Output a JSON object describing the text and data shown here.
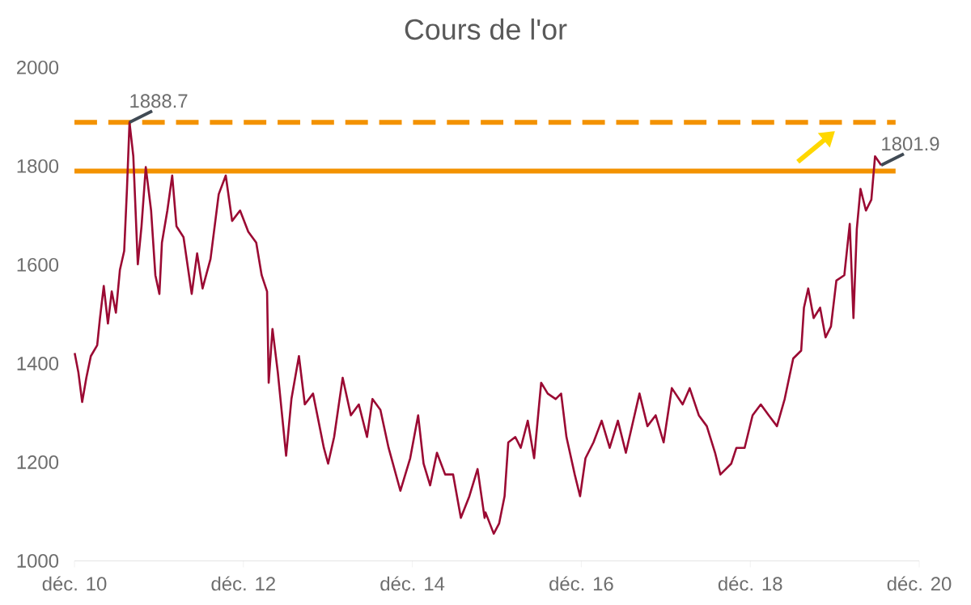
{
  "chart_data": {
    "type": "line",
    "title": "Cours de l'or",
    "color": "#9b0a33",
    "x": [
      "2010-12-02",
      "2010-12-18",
      "2011-01-04",
      "2011-01-22",
      "2011-02-11",
      "2011-03-08",
      "2011-03-20",
      "2011-04-06",
      "2011-04-24",
      "2011-05-10",
      "2011-05-28",
      "2011-06-15",
      "2011-07-03",
      "2011-07-15",
      "2011-07-26",
      "2011-08-12",
      "2011-09-01",
      "2011-09-17",
      "2011-10-05",
      "2011-10-28",
      "2011-11-16",
      "2011-12-03",
      "2011-12-14",
      "2012-01-07",
      "2012-01-28",
      "2012-02-16",
      "2012-03-16",
      "2012-04-21",
      "2012-05-14",
      "2012-06-07",
      "2012-07-11",
      "2012-08-16",
      "2012-09-16",
      "2012-10-13",
      "2012-11-17",
      "2012-12-22",
      "2013-01-26",
      "2013-02-19",
      "2013-03-12",
      "2013-03-19",
      "2013-04-05",
      "2013-04-28",
      "2013-06-03",
      "2013-06-26",
      "2013-07-28",
      "2013-08-23",
      "2013-09-28",
      "2013-11-14",
      "2013-12-02",
      "2013-12-28",
      "2014-02-04",
      "2014-03-09",
      "2014-04-13",
      "2014-05-18",
      "2014-06-11",
      "2014-07-15",
      "2014-08-20",
      "2014-10-10",
      "2014-11-22",
      "2014-12-26",
      "2015-01-19",
      "2015-02-17",
      "2015-03-16",
      "2015-04-21",
      "2015-05-25",
      "2015-06-28",
      "2015-08-04",
      "2015-09-09",
      "2015-10-09",
      "2015-10-13",
      "2015-11-18",
      "2015-12-11",
      "2016-01-04",
      "2016-01-20",
      "2016-02-20",
      "2016-03-13",
      "2016-04-13",
      "2016-05-10",
      "2016-06-10",
      "2016-07-08",
      "2016-08-12",
      "2016-09-05",
      "2016-09-28",
      "2016-11-03",
      "2016-11-26",
      "2016-12-19",
      "2017-01-23",
      "2017-02-28",
      "2017-04-02",
      "2017-05-07",
      "2017-06-11",
      "2017-08-09",
      "2017-09-13",
      "2017-10-18",
      "2017-11-22",
      "2017-12-27",
      "2018-02-13",
      "2018-03-13",
      "2018-04-22",
      "2018-05-26",
      "2018-07-01",
      "2018-07-24",
      "2018-09-10",
      "2018-10-02",
      "2018-11-07",
      "2018-12-11",
      "2019-01-16",
      "2019-02-20",
      "2019-03-25",
      "2019-04-28",
      "2019-06-04",
      "2019-07-08",
      "2019-07-20",
      "2019-08-08",
      "2019-09-01",
      "2019-09-29",
      "2019-10-22",
      "2019-11-15",
      "2019-12-08",
      "2020-01-12",
      "2020-02-05",
      "2020-02-21",
      "2020-03-05",
      "2020-03-21",
      "2020-04-14",
      "2020-05-07",
      "2020-05-23",
      "2020-06-19"
    ],
    "values": [
      1421,
      1382,
      1322,
      1371,
      1415,
      1437,
      1492,
      1557,
      1481,
      1546,
      1503,
      1590,
      1628,
      1754,
      1888.7,
      1820,
      1601,
      1678,
      1798,
      1710,
      1579,
      1541,
      1645,
      1710,
      1781,
      1678,
      1656,
      1541,
      1623,
      1552,
      1612,
      1743,
      1781,
      1689,
      1710,
      1667,
      1645,
      1579,
      1546,
      1361,
      1470,
      1382,
      1213,
      1328,
      1415,
      1317,
      1339,
      1229,
      1197,
      1251,
      1371,
      1295,
      1317,
      1251,
      1328,
      1306,
      1229,
      1142,
      1208,
      1295,
      1197,
      1153,
      1219,
      1175,
      1175,
      1087,
      1131,
      1186,
      1087,
      1098,
      1055,
      1076,
      1131,
      1240,
      1251,
      1229,
      1284,
      1208,
      1361,
      1339,
      1328,
      1339,
      1251,
      1175,
      1131,
      1208,
      1240,
      1284,
      1229,
      1284,
      1219,
      1339,
      1273,
      1295,
      1240,
      1350,
      1317,
      1350,
      1295,
      1273,
      1219,
      1175,
      1197,
      1229,
      1229,
      1295,
      1317,
      1295,
      1273,
      1328,
      1410,
      1426,
      1513,
      1552,
      1492,
      1513,
      1453,
      1475,
      1568,
      1579,
      1683,
      1492,
      1672,
      1754,
      1710,
      1732,
      1820,
      1801.9
    ],
    "xlim": [
      "2010-12-01",
      "2020-12-01"
    ],
    "xticks": [
      {
        "value": "2010-12-01",
        "label": "déc. 10"
      },
      {
        "value": "2012-12-01",
        "label": "déc. 12"
      },
      {
        "value": "2014-12-01",
        "label": "déc. 14"
      },
      {
        "value": "2016-12-01",
        "label": "déc. 16"
      },
      {
        "value": "2018-12-01",
        "label": "déc. 18"
      },
      {
        "value": "2020-12-01",
        "label": "déc. 20"
      }
    ],
    "ylim": [
      1000,
      2000
    ],
    "yticks": [
      1000,
      1200,
      1400,
      1600,
      1800,
      2000
    ],
    "ref_lines": [
      {
        "axis": "y",
        "value": 1888.7,
        "color": "#f39200",
        "line_style": "dashed"
      },
      {
        "axis": "y",
        "value": 1790,
        "color": "#f39200",
        "line_style": "solid"
      }
    ],
    "annotations": [
      {
        "text": "1888.7",
        "x": "2011-07-26",
        "y": 1888.7
      },
      {
        "text": "1801.9",
        "x": "2020-06-19",
        "y": 1801.9
      }
    ],
    "marker": "none",
    "line_style": "solid"
  }
}
